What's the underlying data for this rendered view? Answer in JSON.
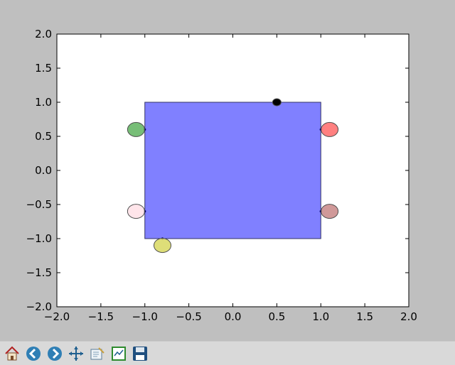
{
  "window": {
    "toolbar": {
      "buttons": [
        {
          "name": "home",
          "icon": "home-icon",
          "tooltip": "Reset original view"
        },
        {
          "name": "back",
          "icon": "back-arrow-icon",
          "tooltip": "Back to previous view"
        },
        {
          "name": "forward",
          "icon": "forward-arrow-icon",
          "tooltip": "Forward to next view"
        },
        {
          "name": "pan",
          "icon": "pan-move-icon",
          "tooltip": "Pan axes"
        },
        {
          "name": "zoom",
          "icon": "zoom-rect-icon",
          "tooltip": "Zoom to rectangle"
        },
        {
          "name": "subplots",
          "icon": "subplots-config-icon",
          "tooltip": "Configure subplots"
        },
        {
          "name": "save",
          "icon": "save-disk-icon",
          "tooltip": "Save the figure"
        }
      ]
    }
  },
  "colors": {
    "figure_background": "#bfbfbf",
    "axes_background": "#ffffff",
    "toolbar_background": "#d9d9d9"
  },
  "chart_data": {
    "type": "scatter",
    "title": "",
    "xlabel": "",
    "ylabel": "",
    "xlim": [
      -2.0,
      2.0
    ],
    "ylim": [
      -2.0,
      2.0
    ],
    "xticks": [
      "−2.0",
      "−1.5",
      "−1.0",
      "−0.5",
      "0.0",
      "0.5",
      "1.0",
      "1.5",
      "2.0"
    ],
    "yticks": [
      "2.0",
      "1.5",
      "1.0",
      "0.5",
      "0.0",
      "−0.5",
      "−1.0",
      "−1.5",
      "−2.0"
    ],
    "grid": false,
    "rectangle": {
      "x": [
        -1.0,
        1.0
      ],
      "y": [
        -1.0,
        1.0
      ],
      "facecolor": "#8080ff",
      "edgecolor": "#333366"
    },
    "points": [
      {
        "x": -1.1,
        "y": 0.6,
        "color": "#5fb35f",
        "anchor_x": -1.0,
        "anchor_y": 0.6
      },
      {
        "x": 1.1,
        "y": 0.6,
        "color": "#ff6a6a",
        "anchor_x": 1.0,
        "anchor_y": 0.6
      },
      {
        "x": -1.1,
        "y": -0.6,
        "color": "#ffe0e6",
        "anchor_x": -1.0,
        "anchor_y": -0.6
      },
      {
        "x": 1.1,
        "y": -0.6,
        "color": "#c88787",
        "anchor_x": 1.0,
        "anchor_y": -0.6
      },
      {
        "x": -0.8,
        "y": -1.1,
        "color": "#d8d860",
        "anchor_x": -0.8,
        "anchor_y": -1.0
      },
      {
        "x": 0.5,
        "y": 1.0,
        "color": "#000000",
        "anchor_x": 0.5,
        "anchor_y": 1.0
      }
    ]
  }
}
